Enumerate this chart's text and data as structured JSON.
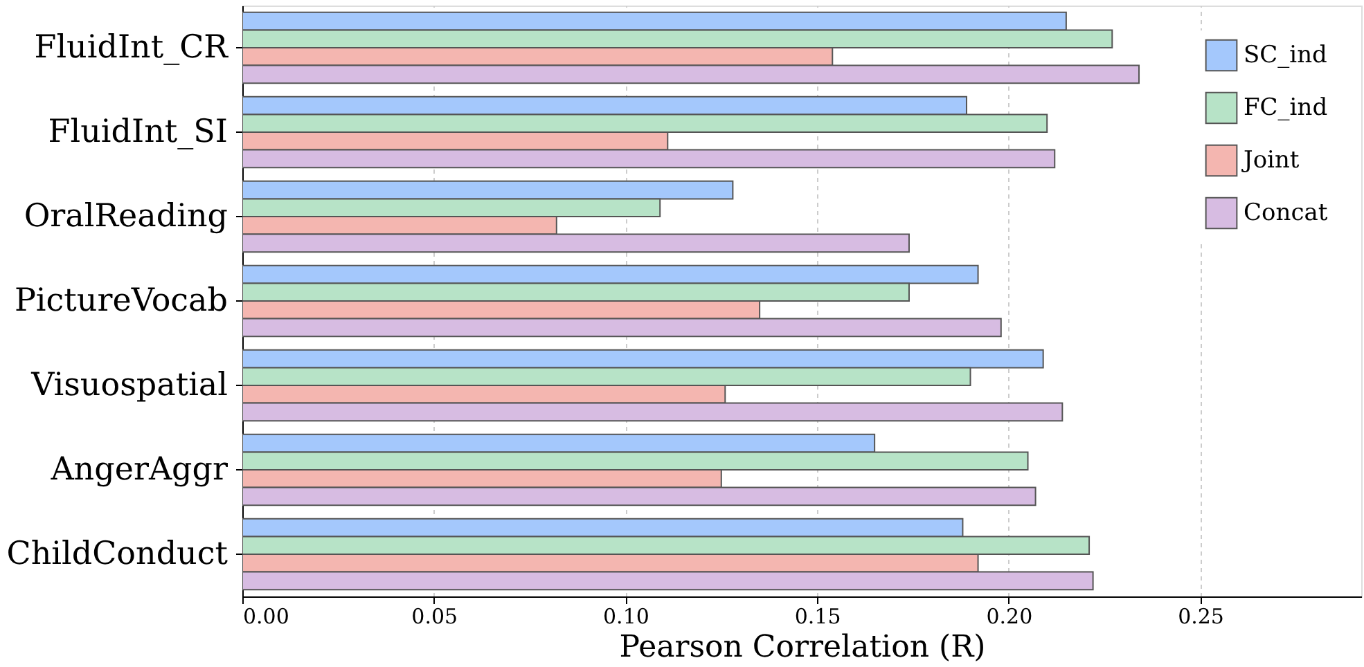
{
  "chart_data": {
    "type": "bar",
    "orientation": "horizontal",
    "xlabel": "Pearson Correlation (R)",
    "categories": [
      "FluidInt_CR",
      "FluidInt_SI",
      "OralReading",
      "PictureVocab",
      "Visuospatial",
      "AngerAggr",
      "ChildConduct"
    ],
    "series": [
      {
        "name": "SC_ind",
        "color": "#a4c8fc",
        "values": [
          0.215,
          0.189,
          0.128,
          0.192,
          0.209,
          0.165,
          0.188
        ]
      },
      {
        "name": "FC_ind",
        "color": "#b7e3c7",
        "values": [
          0.227,
          0.21,
          0.109,
          0.174,
          0.19,
          0.205,
          0.221
        ]
      },
      {
        "name": "Joint",
        "color": "#f4b6b0",
        "values": [
          0.154,
          0.111,
          0.082,
          0.135,
          0.126,
          0.125,
          0.192
        ]
      },
      {
        "name": "Concat",
        "color": "#d7bce2",
        "values": [
          0.234,
          0.212,
          0.174,
          0.198,
          0.214,
          0.207,
          0.222
        ]
      }
    ],
    "xlim": [
      0,
      0.292
    ],
    "xticks": [
      {
        "value": 0,
        "label": "0.00"
      },
      0.05,
      {
        "value": 0.1,
        "label": "0.10"
      },
      0.15,
      {
        "value": 0.2,
        "label": "0.20"
      },
      0.25
    ],
    "grid": "x",
    "legend": "top right"
  }
}
